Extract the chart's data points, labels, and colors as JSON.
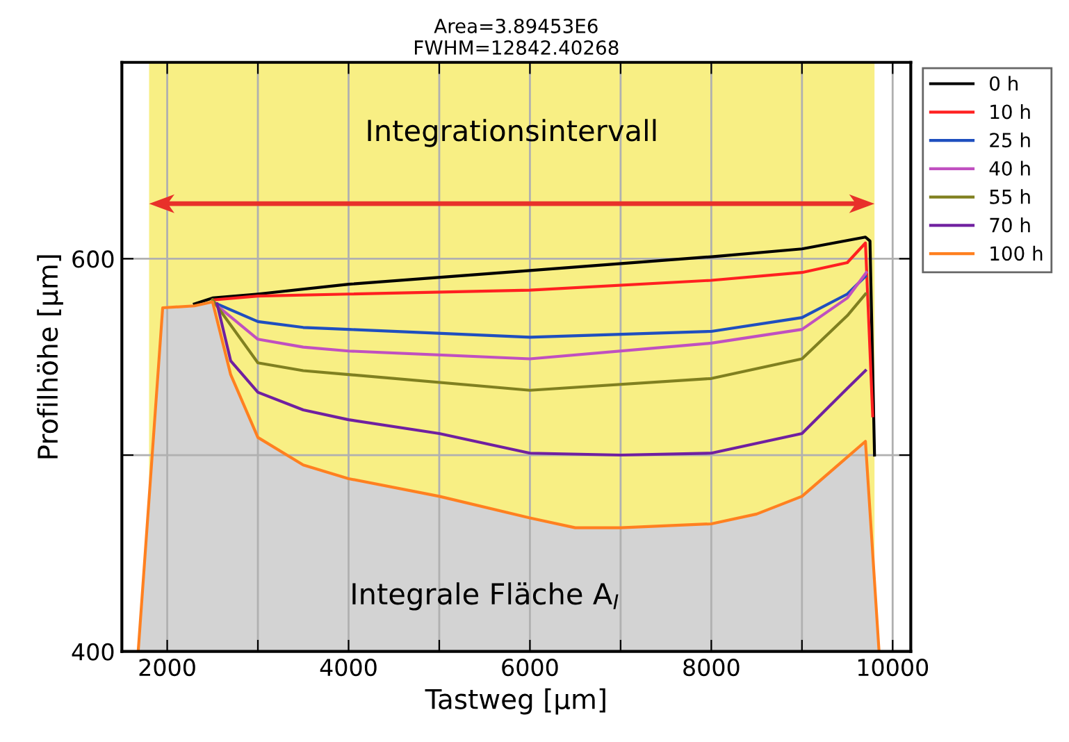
{
  "chart_data": {
    "type": "line",
    "title": "Area=3.89453E6\nFWHM=12842.40268",
    "xlabel": "Tastweg [µm]",
    "ylabel": "Profilhöhe [µm]",
    "xlim": [
      1500,
      10200
    ],
    "ylim": [
      400,
      700
    ],
    "xticks": [
      2000,
      {
        "value": 3000,
        "label": null
      },
      4000,
      {
        "value": 5000,
        "label": null
      },
      6000,
      {
        "value": 7000,
        "label": null
      },
      8000,
      {
        "value": 9000,
        "label": null
      },
      10000
    ],
    "yticks": [
      400,
      {
        "value": 500,
        "label": null
      },
      600
    ],
    "grid": true,
    "legend": "top right",
    "line_style": "solid",
    "marker": "none",
    "bands": [
      {
        "axis": "x",
        "from": 1800,
        "to": 9800,
        "label": "Integrationsintervall",
        "color": "#f8ef84"
      }
    ],
    "annotations": [
      "Integrale Fläche A$_{I}$"
    ],
    "series": [
      {
        "name": "0 h",
        "color": "#000000",
        "x": [
          2300,
          2500,
          3000,
          4000,
          6000,
          8000,
          9000,
          9700,
          9750,
          9800
        ],
        "values": [
          577,
          580,
          582,
          587,
          594,
          601,
          605,
          611,
          609,
          500
        ]
      },
      {
        "name": "10 h",
        "color": "#ff2020",
        "x": [
          2500,
          3000,
          4000,
          6000,
          8000,
          9000,
          9500,
          9700,
          9780
        ],
        "values": [
          579,
          581,
          582,
          584,
          589,
          593,
          598,
          608,
          520
        ]
      },
      {
        "name": "25 h",
        "color": "#1f4fbf",
        "x": [
          2500,
          3000,
          3500,
          4000,
          6000,
          8000,
          9000,
          9500,
          9700
        ],
        "values": [
          578,
          568,
          565,
          564,
          560,
          563,
          570,
          582,
          591
        ]
      },
      {
        "name": "40 h",
        "color": "#c050c0",
        "x": [
          2500,
          3000,
          3500,
          4000,
          6000,
          8000,
          9000,
          9500,
          9710
        ],
        "values": [
          578,
          559,
          555,
          553,
          549,
          557,
          564,
          580,
          593
        ]
      },
      {
        "name": "55 h",
        "color": "#808020",
        "x": [
          2500,
          3000,
          3500,
          4000,
          6000,
          8000,
          9000,
          9500,
          9700
        ],
        "values": [
          579,
          547,
          543,
          541,
          533,
          539,
          549,
          571,
          582
        ]
      },
      {
        "name": "70 h",
        "color": "#7020a0",
        "x": [
          2550,
          2700,
          3000,
          3500,
          4000,
          5000,
          6000,
          7000,
          8000,
          9000,
          9500,
          9700
        ],
        "values": [
          577,
          548,
          532,
          523,
          518,
          511,
          501,
          500,
          501,
          511,
          534,
          543
        ]
      },
      {
        "name": "100 h",
        "type": "area",
        "color": "#ff8020",
        "x": [
          1680,
          1950,
          2300,
          2500,
          2700,
          3000,
          3500,
          4000,
          5000,
          6000,
          6500,
          7000,
          8000,
          8500,
          9000,
          9500,
          9700,
          9850
        ],
        "values": [
          400,
          575,
          576,
          578,
          541,
          509,
          495,
          488,
          479,
          468,
          463,
          463,
          465,
          470,
          479,
          499,
          507,
          400
        ]
      }
    ]
  }
}
